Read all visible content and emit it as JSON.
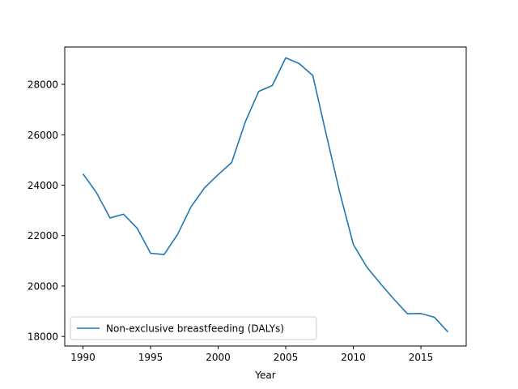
{
  "chart_data": {
    "type": "line",
    "title": "",
    "xlabel": "Year",
    "ylabel": "",
    "xlim": [
      1988.65,
      2018.35
    ],
    "ylim": [
      17620,
      29480
    ],
    "xticks": [
      1990,
      1995,
      2000,
      2005,
      2010,
      2015
    ],
    "yticks": [
      18000,
      20000,
      22000,
      24000,
      26000,
      28000
    ],
    "grid": false,
    "legend_position": "lower left",
    "series": [
      {
        "name": "Non-exclusive breastfeeding (DALYs)",
        "color": "#1f77b4",
        "x": [
          1990,
          1991,
          1992,
          1993,
          1994,
          1995,
          1996,
          1997,
          1998,
          1999,
          2000,
          2001,
          2002,
          2003,
          2004,
          2005,
          2006,
          2007,
          2008,
          2009,
          2010,
          2011,
          2012,
          2013,
          2014,
          2015,
          2016,
          2017
        ],
        "y": [
          24450,
          23700,
          22700,
          22850,
          22300,
          21300,
          21250,
          22050,
          23150,
          23900,
          24420,
          24900,
          26500,
          27720,
          27950,
          29050,
          28820,
          28350,
          26000,
          23700,
          21650,
          20750,
          20100,
          19480,
          18900,
          18910,
          18760,
          18180
        ]
      }
    ]
  }
}
